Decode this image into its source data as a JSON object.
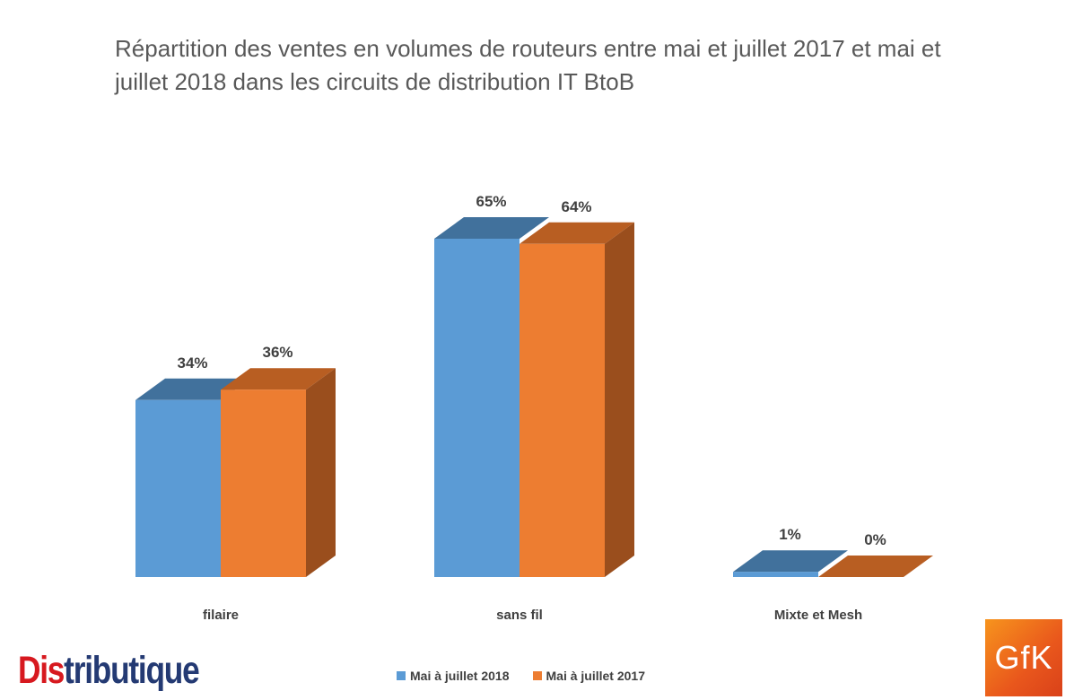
{
  "chart_data": {
    "type": "bar",
    "title": "Répartition des ventes en volumes de routeurs entre mai et juillet 2017 et mai et juillet 2018 dans les circuits de distribution IT BtoB",
    "categories": [
      "filaire",
      "sans fil",
      "Mixte et Mesh"
    ],
    "series": [
      {
        "name": "Mai à juillet 2018",
        "values": [
          34,
          65,
          1
        ],
        "labels": [
          "34%",
          "65%",
          "1%"
        ],
        "color": "#5b9bd5",
        "top_color": "#41719c"
      },
      {
        "name": "Mai à juillet 2017",
        "values": [
          36,
          64,
          0
        ],
        "labels": [
          "36%",
          "64%",
          "0%"
        ],
        "color": "#ed7d31",
        "top_color": "#b85e22",
        "side_color": "#9a4e1d"
      }
    ],
    "ylim": [
      0,
      65
    ],
    "grid": false,
    "legend_position": "bottom",
    "three_d": true
  },
  "logos": {
    "distributique_a": "Dis",
    "distributique_b": "tributique",
    "gfk": "GfK"
  }
}
